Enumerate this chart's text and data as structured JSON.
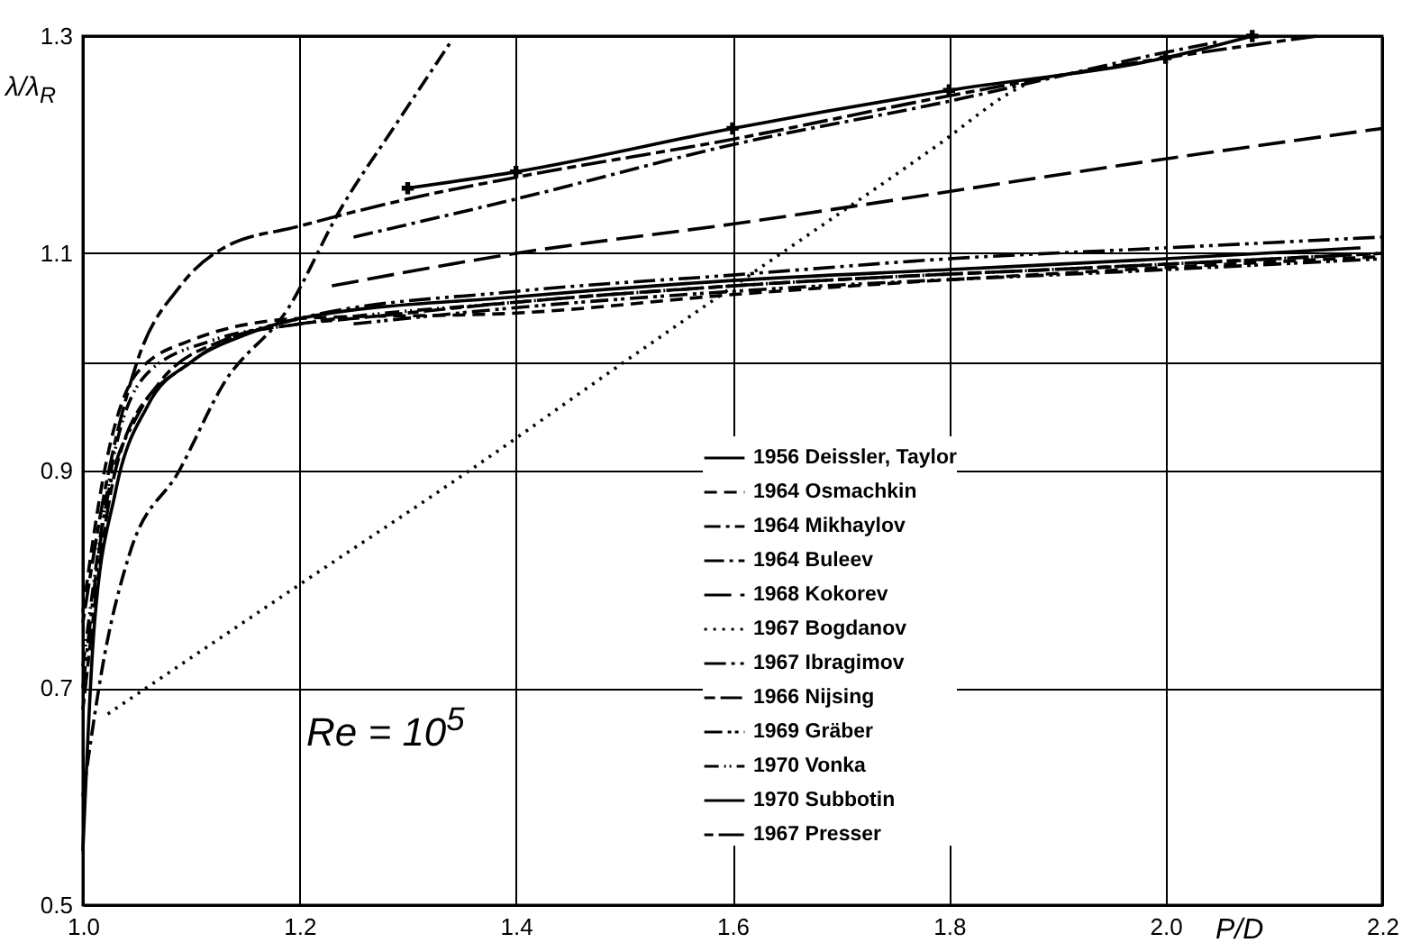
{
  "chart_data": {
    "type": "line",
    "ylabel": "λ/λ$_{R}$",
    "xlabel": "P/D",
    "annotations": [
      "Re = 10$^{5}$"
    ],
    "xlim": [
      1.0,
      2.2
    ],
    "ylim": [
      0.5,
      1.3
    ],
    "xticks": [
      {
        "value": 1.0,
        "label": "1.0"
      },
      {
        "value": 1.2,
        "label": "1.2"
      },
      {
        "value": 1.4,
        "label": "1.4"
      },
      {
        "value": 1.6,
        "label": "1.6"
      },
      {
        "value": 1.8,
        "label": "1.8"
      },
      {
        "value": 2.0,
        "label": "2.0"
      },
      {
        "value": 2.2,
        "label": "2.2"
      }
    ],
    "yticks": [
      {
        "value": 0.5,
        "label": "0.5"
      },
      {
        "value": 0.7,
        "label": "0.7"
      },
      {
        "value": 0.9,
        "label": "0.9"
      },
      {
        "value": 1.0,
        "label": null
      },
      {
        "value": 1.1,
        "label": "1.1"
      },
      {
        "value": 1.3,
        "label": "1.3"
      }
    ],
    "grid": true,
    "legend": "bottom right",
    "series": [
      {
        "name": "1956 Deissler, Taylor",
        "color": "#000000",
        "line_style": "solid",
        "x": [
          1.0,
          1.01,
          1.03,
          1.06,
          1.1,
          1.15,
          1.2,
          1.4,
          1.6,
          1.8,
          2.0,
          2.18
        ],
        "values": [
          0.55,
          0.75,
          0.88,
          0.96,
          1.0,
          1.025,
          1.04,
          1.06,
          1.075,
          1.085,
          1.095,
          1.105
        ]
      },
      {
        "name": "1964 Osmachkin",
        "color": "#000000",
        "line_style": "dashed",
        "x": [
          1.0,
          1.02,
          1.05,
          1.1,
          1.2,
          1.4,
          1.6,
          2.0,
          2.2
        ],
        "values": [
          0.77,
          0.9,
          0.99,
          1.02,
          1.04,
          1.045,
          1.062,
          1.087,
          1.097
        ]
      },
      {
        "name": "1964 Mikhaylov",
        "color": "#000000",
        "line_style": "dashed",
        "x": [
          1.0,
          1.02,
          1.043,
          1.089,
          1.13,
          1.19,
          1.237,
          1.29,
          1.34
        ],
        "values": [
          0.6,
          0.73,
          0.823,
          0.9,
          0.98,
          1.05,
          1.139,
          1.22,
          1.295
        ]
      },
      {
        "name": "1964 Buleev",
        "color": "#000000",
        "line_style": "dashed",
        "x": [
          1.25,
          1.4,
          1.6,
          1.8,
          2.0,
          2.05
        ],
        "values": [
          1.115,
          1.15,
          1.2,
          1.24,
          1.285,
          1.295
        ]
      },
      {
        "name": "1968 Kokorev",
        "color": "#000000",
        "line_style": "dashed",
        "x": [
          1.23,
          1.4,
          1.6,
          2.0,
          2.2
        ],
        "values": [
          1.07,
          1.1,
          1.127,
          1.187,
          1.215
        ]
      },
      {
        "name": "1967 Bogdanov",
        "color": "#000000",
        "line_style": "dotted",
        "x": [
          1.023,
          1.2,
          1.357,
          1.5,
          1.594,
          1.79,
          1.86,
          1.88
        ],
        "values": [
          0.676,
          0.795,
          0.9,
          1.0,
          1.065,
          1.2,
          1.25,
          1.26
        ]
      },
      {
        "name": "1967 Ibragimov",
        "color": "#000000",
        "line_style": "dashed",
        "x": [
          1.0,
          1.02,
          1.05,
          1.1,
          1.2,
          1.4,
          1.6,
          1.8,
          2.0,
          2.2
        ],
        "values": [
          0.7,
          0.86,
          0.95,
          1.0,
          1.04,
          1.065,
          1.08,
          1.095,
          1.105,
          1.115
        ]
      },
      {
        "name": "1966 Nijsing",
        "color": "#000000",
        "line_style": "dashed",
        "x": [
          1.0,
          1.03,
          1.07,
          1.13,
          1.2,
          1.25,
          1.4,
          1.6,
          2.0,
          2.2
        ],
        "values": [
          0.68,
          0.9,
          0.98,
          1.02,
          1.035,
          1.04,
          1.055,
          1.07,
          1.09,
          1.1
        ]
      },
      {
        "name": "1969 Gräber",
        "color": "#000000",
        "line_style": "dashed",
        "x": [
          1.25,
          1.4,
          1.6,
          2.0,
          2.2
        ],
        "values": [
          1.035,
          1.05,
          1.065,
          1.085,
          1.095
        ]
      },
      {
        "name": "1970 Vonka",
        "color": "#000000",
        "line_style": "dashed",
        "x": [
          1.0,
          1.03,
          1.06,
          1.12,
          1.2,
          1.4,
          1.6,
          2.0,
          2.2
        ],
        "values": [
          0.72,
          0.92,
          0.99,
          1.02,
          1.035,
          1.055,
          1.07,
          1.09,
          1.1
        ]
      },
      {
        "name": "1970 Subbotin",
        "color": "#000000",
        "line_style": "solid",
        "marker": "cross",
        "x": [
          1.3,
          1.4,
          1.6,
          1.8,
          2.0,
          2.08
        ],
        "values": [
          1.16,
          1.175,
          1.215,
          1.25,
          1.28,
          1.3
        ]
      },
      {
        "name": "1967 Presser",
        "color": "#000000",
        "line_style": "dashed",
        "x": [
          1.0,
          1.02,
          1.05,
          1.09,
          1.13,
          1.2,
          1.3,
          1.4,
          1.6,
          1.8,
          2.0,
          2.14
        ],
        "values": [
          0.76,
          0.88,
          1.0,
          1.07,
          1.105,
          1.125,
          1.15,
          1.17,
          1.205,
          1.245,
          1.28,
          1.3
        ]
      }
    ]
  }
}
